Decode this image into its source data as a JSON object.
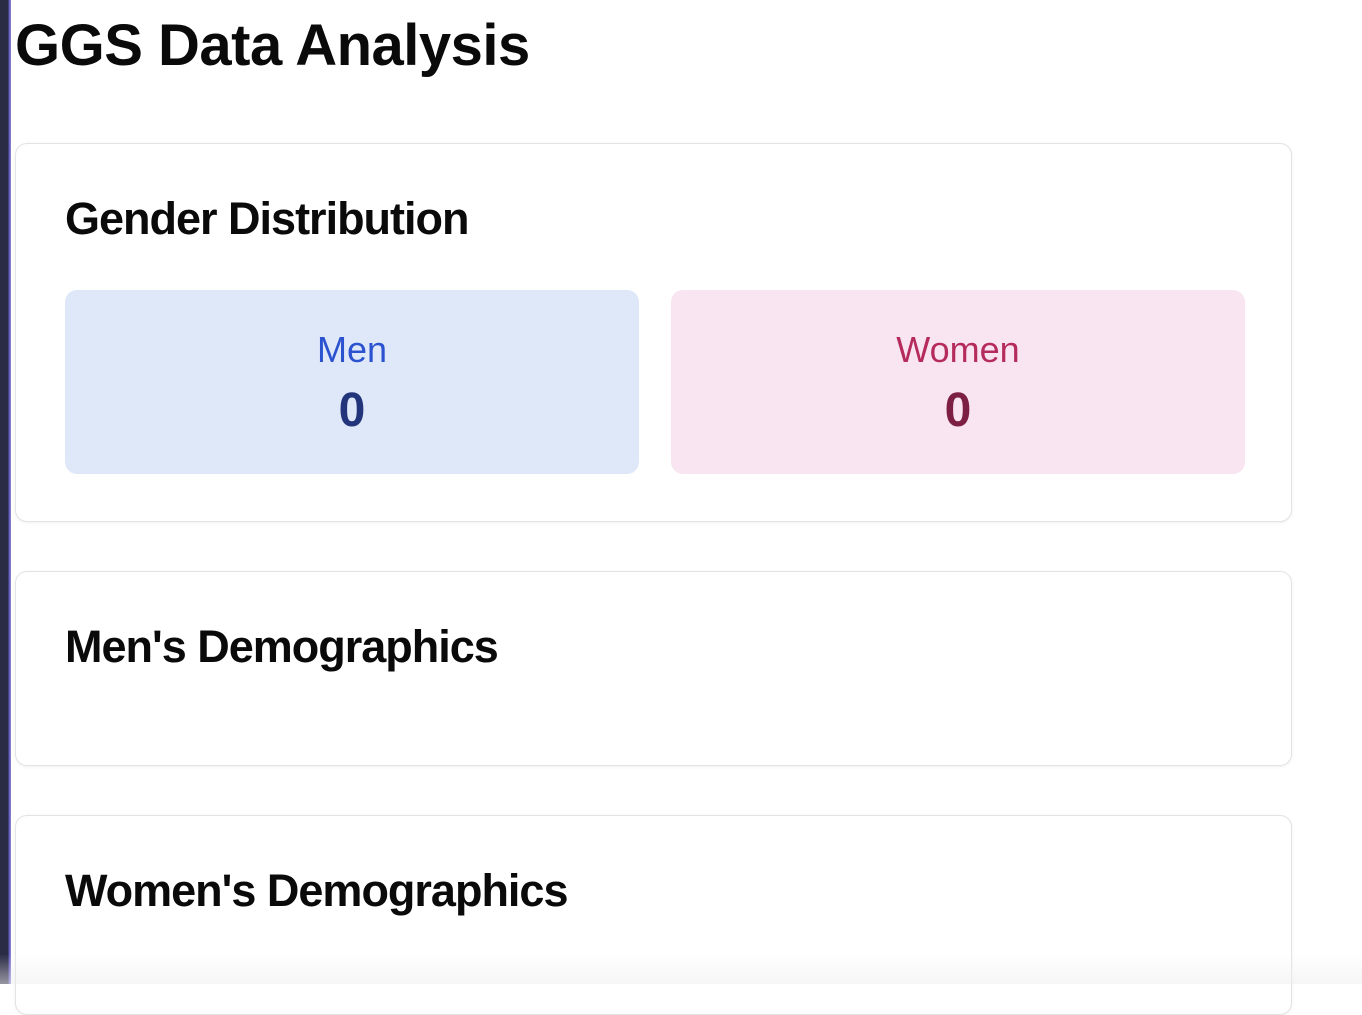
{
  "page": {
    "title": "GGS Data Analysis"
  },
  "gender_distribution": {
    "title": "Gender Distribution",
    "men": {
      "label": "Men",
      "value": "0"
    },
    "women": {
      "label": "Women",
      "value": "0"
    }
  },
  "mens_demographics": {
    "title": "Men's Demographics"
  },
  "womens_demographics": {
    "title": "Women's Demographics"
  },
  "colors": {
    "men_bg": "#dfe8f9",
    "men_label": "#2b52cf",
    "men_value": "#22347a",
    "women_bg": "#f9e5f1",
    "women_label": "#b52b5c",
    "women_value": "#7c1f42"
  }
}
